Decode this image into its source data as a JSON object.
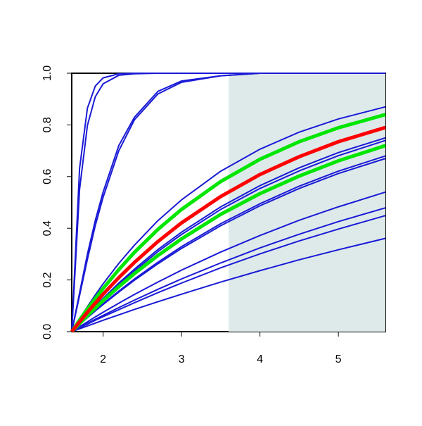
{
  "chart_data": {
    "type": "line",
    "x": [
      1.6,
      1.7,
      1.8,
      1.9,
      2.0,
      2.2,
      2.4,
      2.7,
      3.0,
      3.5,
      4.0,
      4.5,
      5.0,
      5.6
    ],
    "xlim": [
      1.6,
      5.6
    ],
    "xticks": [
      2,
      3,
      4,
      5
    ],
    "ylim": [
      0,
      1
    ],
    "yticks": [
      {
        "value": 0,
        "label": "0.0"
      },
      0.2,
      0.4,
      0.6,
      0.8,
      {
        "value": 1,
        "label": "1.0"
      }
    ],
    "color": "#1a1ad6",
    "shade": {
      "xlim": [
        3.6,
        5.6
      ],
      "color": "#deeaea"
    },
    "series": [
      {
        "values": [
          0,
          0.632,
          0.865,
          0.95,
          0.982,
          0.998,
          1,
          1,
          1,
          1,
          1,
          1,
          1,
          1
        ]
      },
      {
        "values": [
          0,
          0.551,
          0.798,
          0.909,
          0.959,
          0.992,
          0.998,
          1,
          1,
          1,
          1,
          1,
          1,
          1
        ]
      },
      {
        "values": [
          0,
          0.15,
          0.3,
          0.43,
          0.54,
          0.72,
          0.83,
          0.93,
          0.97,
          0.99,
          1,
          1,
          1,
          1
        ]
      },
      {
        "values": [
          0,
          0.14,
          0.28,
          0.41,
          0.52,
          0.7,
          0.82,
          0.92,
          0.965,
          0.99,
          1,
          1,
          1,
          1
        ]
      },
      {
        "values": [
          0,
          0.05,
          0.097,
          0.142,
          0.185,
          0.264,
          0.335,
          0.43,
          0.51,
          0.621,
          0.706,
          0.772,
          0.823,
          0.87
        ]
      },
      {
        "values": [
          0,
          0.034,
          0.067,
          0.099,
          0.129,
          0.188,
          0.242,
          0.318,
          0.385,
          0.483,
          0.565,
          0.634,
          0.693,
          0.75
        ]
      },
      {
        "values": [
          0,
          0.033,
          0.065,
          0.096,
          0.125,
          0.182,
          0.235,
          0.31,
          0.376,
          0.473,
          0.554,
          0.622,
          0.681,
          0.74
        ]
      },
      {
        "values": [
          0,
          0.028,
          0.055,
          0.082,
          0.108,
          0.157,
          0.204,
          0.269,
          0.329,
          0.418,
          0.495,
          0.563,
          0.621,
          0.68
        ]
      },
      {
        "values": [
          0,
          0.027,
          0.054,
          0.08,
          0.105,
          0.153,
          0.199,
          0.263,
          0.322,
          0.41,
          0.487,
          0.554,
          0.612,
          0.67
        ]
      },
      {
        "values": [
          0,
          0.019,
          0.038,
          0.057,
          0.075,
          0.11,
          0.144,
          0.192,
          0.238,
          0.308,
          0.372,
          0.431,
          0.483,
          0.54
        ]
      },
      {
        "values": [
          0,
          0.016,
          0.032,
          0.048,
          0.063,
          0.093,
          0.122,
          0.164,
          0.204,
          0.266,
          0.324,
          0.377,
          0.426,
          0.479
        ]
      },
      {
        "values": [
          0,
          0.015,
          0.029,
          0.044,
          0.058,
          0.085,
          0.112,
          0.151,
          0.188,
          0.247,
          0.301,
          0.351,
          0.397,
          0.449
        ]
      },
      {
        "values": [
          0,
          0.011,
          0.022,
          0.033,
          0.044,
          0.065,
          0.086,
          0.116,
          0.145,
          0.192,
          0.236,
          0.278,
          0.317,
          0.361
        ]
      },
      {
        "color": "#00e600",
        "values": [
          0,
          0.045,
          0.088,
          0.128,
          0.167,
          0.24,
          0.307,
          0.396,
          0.473,
          0.581,
          0.667,
          0.735,
          0.789,
          0.84
        ]
      },
      {
        "color": "#00e600",
        "values": [
          0,
          0.031,
          0.062,
          0.091,
          0.12,
          0.174,
          0.225,
          0.295,
          0.359,
          0.454,
          0.534,
          0.602,
          0.661,
          0.72
        ]
      },
      {
        "color": "#ff0000",
        "values": [
          0,
          0.038,
          0.075,
          0.11,
          0.145,
          0.209,
          0.268,
          0.349,
          0.421,
          0.523,
          0.608,
          0.677,
          0.735,
          0.79
        ]
      }
    ]
  }
}
